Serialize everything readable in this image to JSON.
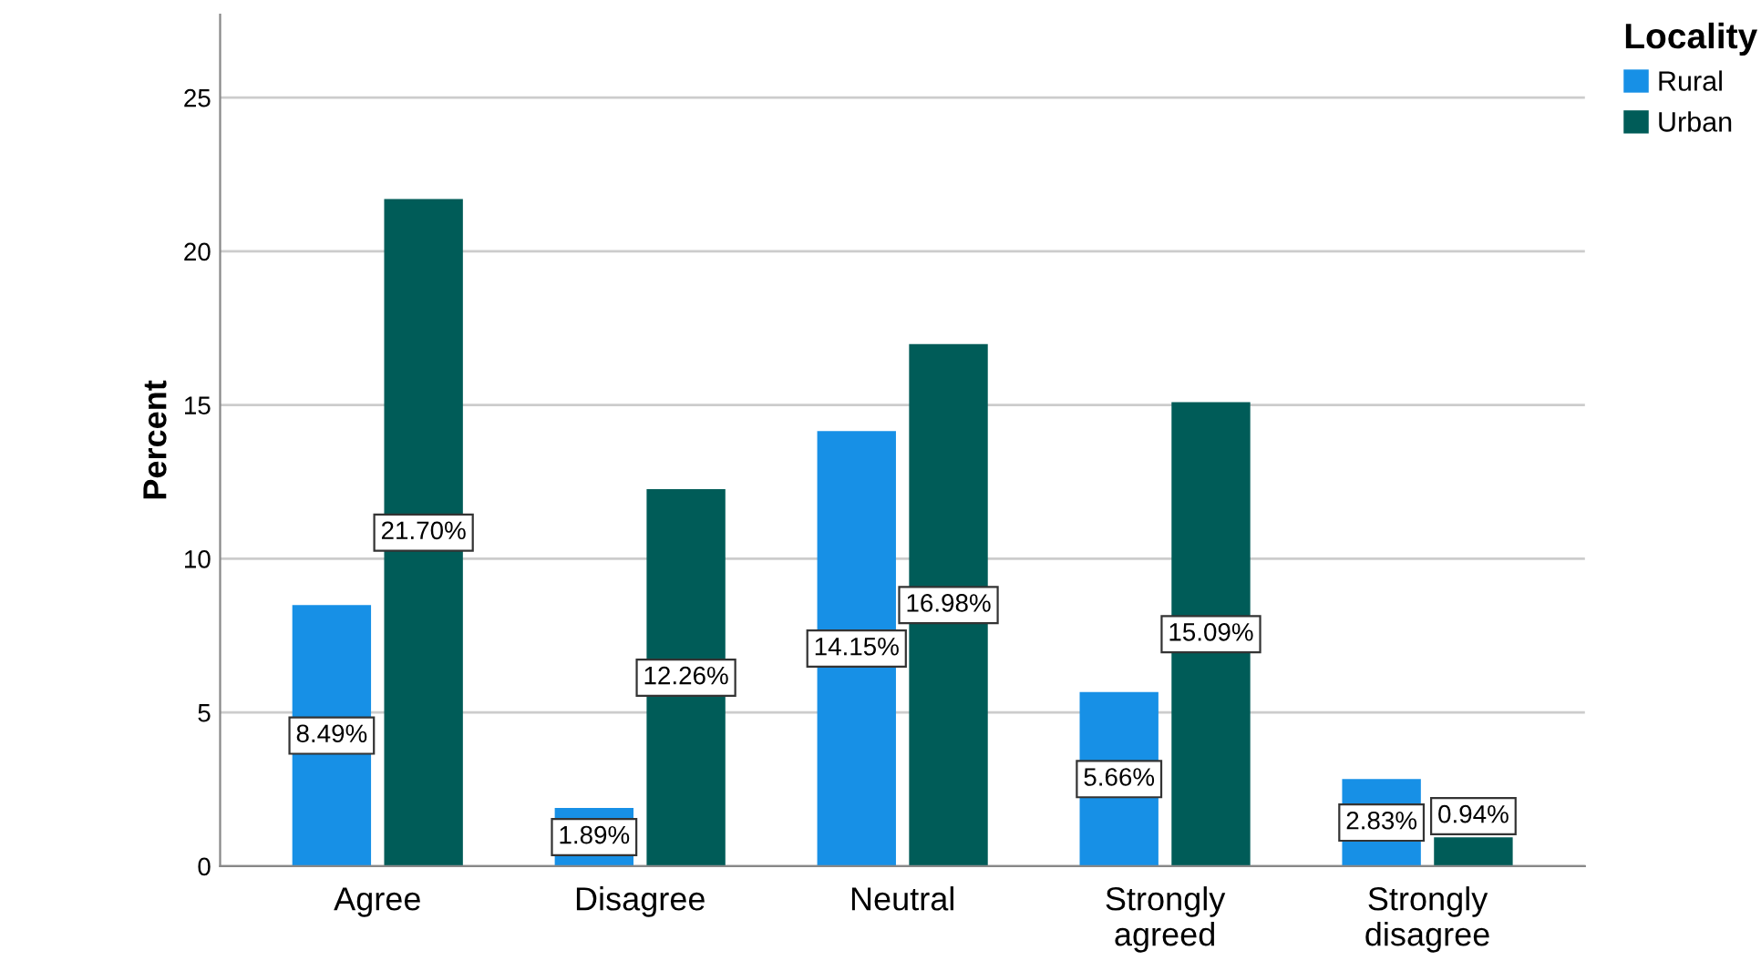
{
  "chart_data": {
    "type": "bar",
    "ylabel": "Percent",
    "legend_title": "Locality",
    "categories": [
      "Agree",
      "Disagree",
      "Neutral",
      "Strongly\nagreed",
      "Strongly\ndisagree"
    ],
    "series": [
      {
        "name": "Rural",
        "color": "#1790e6",
        "values": [
          8.49,
          1.89,
          14.15,
          5.66,
          2.83
        ],
        "value_labels": [
          "8.49%",
          "1.89%",
          "14.15%",
          "5.66%",
          "2.83%"
        ]
      },
      {
        "name": "Urban",
        "color": "#005c58",
        "values": [
          21.7,
          12.26,
          16.98,
          15.09,
          0.94
        ],
        "value_labels": [
          "21.70%",
          "12.26%",
          "16.98%",
          "15.09%",
          "0.94%"
        ]
      }
    ],
    "ylim": [
      0,
      27.7
    ],
    "yticks": [
      0,
      5,
      10,
      15,
      20,
      25
    ],
    "grid": "y",
    "legend": "top right"
  }
}
